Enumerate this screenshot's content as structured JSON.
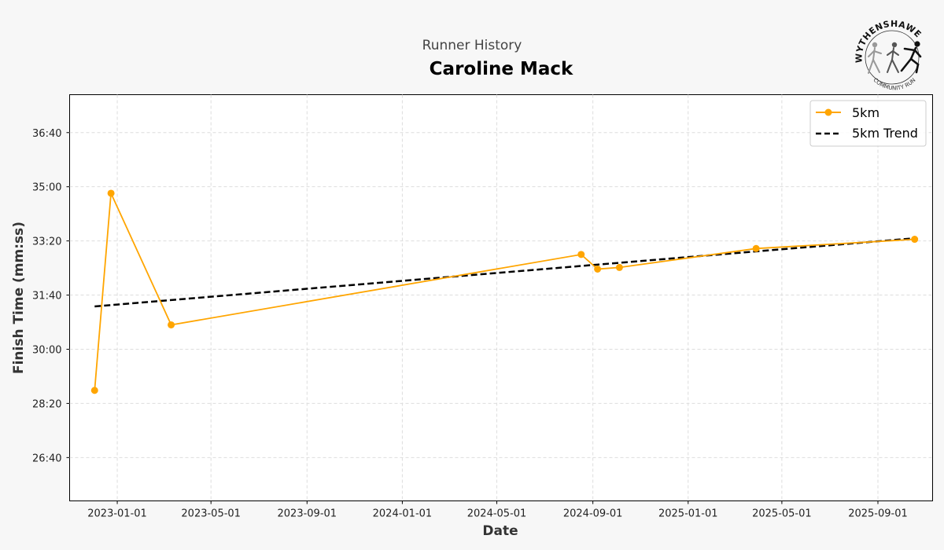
{
  "chart_data": {
    "type": "line",
    "subtitle": "Runner History",
    "title": "Caroline Mack",
    "xlabel": "Date",
    "ylabel": "Finish Time (mm:ss)",
    "x_tick_labels": [
      "2023-01-01",
      "2023-05-01",
      "2023-09-01",
      "2024-01-01",
      "2024-05-01",
      "2024-09-01",
      "2025-01-01",
      "2025-05-01",
      "2025-09-01"
    ],
    "y_tick_labels": [
      "26:40",
      "28:20",
      "30:00",
      "31:40",
      "33:20",
      "35:00",
      "36:40"
    ],
    "y_tick_seconds": [
      1600,
      1700,
      1800,
      1900,
      2000,
      2100,
      2200
    ],
    "ylim_seconds": [
      1520,
      2270
    ],
    "xlim": [
      "2022-11-01",
      "2025-11-10"
    ],
    "grid": true,
    "legend_position": "top-right",
    "series": [
      {
        "name": "5km",
        "color": "#FFA500",
        "style": "solid-with-markers",
        "points": [
          {
            "date": "2022-12-03",
            "time": "28:44"
          },
          {
            "date": "2022-12-24",
            "time": "34:48"
          },
          {
            "date": "2023-03-11",
            "time": "30:45"
          },
          {
            "date": "2024-08-17",
            "time": "32:55"
          },
          {
            "date": "2024-09-07",
            "time": "32:28"
          },
          {
            "date": "2024-10-05",
            "time": "32:31"
          },
          {
            "date": "2025-03-29",
            "time": "33:06"
          },
          {
            "date": "2025-10-18",
            "time": "33:23"
          }
        ]
      },
      {
        "name": "5km Trend",
        "color": "#000000",
        "style": "dashed",
        "points": [
          {
            "date": "2022-12-03",
            "time": "31:19"
          },
          {
            "date": "2025-10-18",
            "time": "33:25"
          }
        ]
      }
    ]
  },
  "logo": {
    "arc_text": "WYTHENSHAWE",
    "sub_text": "COMMUNITY RUN",
    "colors": [
      "#999999",
      "#555555",
      "#111111"
    ]
  }
}
